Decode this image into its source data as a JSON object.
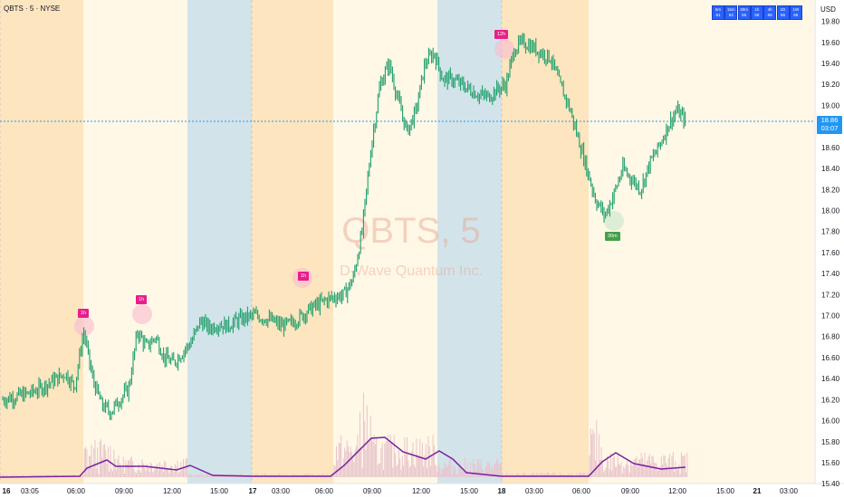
{
  "header": {
    "title": "QBTS · 5 · NYSE",
    "currency": "USD"
  },
  "watermark": {
    "symbol": "QBTS, 5",
    "company": "D-Wave Quantum Inc."
  },
  "timeframe_boxes": [
    {
      "tf": "5m",
      "value": "61"
    },
    {
      "tf": "15m",
      "value": "64"
    },
    {
      "tf": "30m",
      "value": "55"
    },
    {
      "tf": "1h",
      "value": "58"
    },
    {
      "tf": "4h",
      "value": "69"
    },
    {
      "tf": "1D",
      "value": "65"
    },
    {
      "tf": "1W",
      "value": "65"
    }
  ],
  "price_axis": {
    "ticks": [
      "19.80",
      "19.60",
      "19.40",
      "19.20",
      "19.00",
      "18.80",
      "18.60",
      "18.40",
      "18.20",
      "18.00",
      "17.80",
      "17.60",
      "17.40",
      "17.20",
      "17.00",
      "16.80",
      "16.60",
      "16.40",
      "16.20",
      "16.00",
      "15.80",
      "15.60",
      "15.40"
    ]
  },
  "time_axis": {
    "ticks": [
      {
        "label": "16",
        "bold": true
      },
      {
        "label": "03:05",
        "bold": false
      },
      {
        "label": "06:00",
        "bold": false
      },
      {
        "label": "09:00",
        "bold": false
      },
      {
        "label": "12:00",
        "bold": false
      },
      {
        "label": "15:00",
        "bold": false
      },
      {
        "label": "17",
        "bold": true
      },
      {
        "label": "03:00",
        "bold": false
      },
      {
        "label": "06:00",
        "bold": false
      },
      {
        "label": "09:00",
        "bold": false
      },
      {
        "label": "12:00",
        "bold": false
      },
      {
        "label": "15:00",
        "bold": false
      },
      {
        "label": "18",
        "bold": true
      },
      {
        "label": "03:00",
        "bold": false
      },
      {
        "label": "06:00",
        "bold": false
      },
      {
        "label": "09:00",
        "bold": false
      },
      {
        "label": "12:00",
        "bold": false
      },
      {
        "label": "15:00",
        "bold": false
      },
      {
        "label": "21",
        "bold": true
      },
      {
        "label": "03:00",
        "bold": false
      }
    ]
  },
  "last_price": {
    "price": "18.86",
    "countdown": "03:07"
  },
  "markers": [
    {
      "label": "1h",
      "kind": "high"
    },
    {
      "label": "1h",
      "kind": "high"
    },
    {
      "label": "1h",
      "kind": "high"
    },
    {
      "label": "12h",
      "kind": "high"
    },
    {
      "label": "30m",
      "kind": "low"
    }
  ],
  "colors": {
    "premarket": "#fde5bf",
    "regular": "#fff8e6",
    "afterhours": "#d2e4ea",
    "candle": "#1f9e6b",
    "ma_line": "#7b1fa2",
    "volume": "#e8c4cc",
    "last_price_line": "#2196f3",
    "marker_tag": "#e91e8c",
    "marker_tag_low": "#43a047"
  },
  "chart_data": {
    "type": "line",
    "x_axis": "time (5-minute bars)",
    "ylim": [
      15.35,
      19.9
    ],
    "sessions": [
      {
        "phase": "premarket",
        "day": "16"
      },
      {
        "phase": "regular",
        "day": "16"
      },
      {
        "phase": "afterhours",
        "day": "16"
      },
      {
        "phase": "premarket",
        "day": "17"
      },
      {
        "phase": "regular",
        "day": "17"
      },
      {
        "phase": "afterhours",
        "day": "17"
      },
      {
        "phase": "premarket",
        "day": "18"
      },
      {
        "phase": "regular",
        "day": "18"
      }
    ],
    "series": [
      {
        "values": [
          16.2,
          16.22,
          16.24,
          16.26,
          16.3,
          16.35,
          16.4,
          16.45,
          16.32,
          16.85,
          16.4,
          16.15,
          16.08,
          16.2,
          16.3,
          16.85,
          16.7,
          16.8,
          16.6,
          16.55,
          16.65,
          16.75,
          16.95,
          16.88,
          16.92,
          16.9,
          16.95,
          16.98,
          17.0,
          16.98,
          16.95,
          16.9,
          16.92,
          16.98,
          17.05,
          17.1,
          17.15,
          17.18,
          17.2,
          17.35,
          17.8,
          18.6,
          19.2,
          19.4,
          19.05,
          18.75,
          18.95,
          19.4,
          19.5,
          19.25,
          19.25,
          19.2,
          19.15,
          19.1,
          19.08,
          19.15,
          19.2,
          19.55,
          19.6,
          19.55,
          19.5,
          19.45,
          19.2,
          19.0,
          18.7,
          18.4,
          18.1,
          17.95,
          18.15,
          18.4,
          18.3,
          18.2,
          18.45,
          18.6,
          18.8,
          18.95,
          18.86
        ]
      }
    ]
  }
}
